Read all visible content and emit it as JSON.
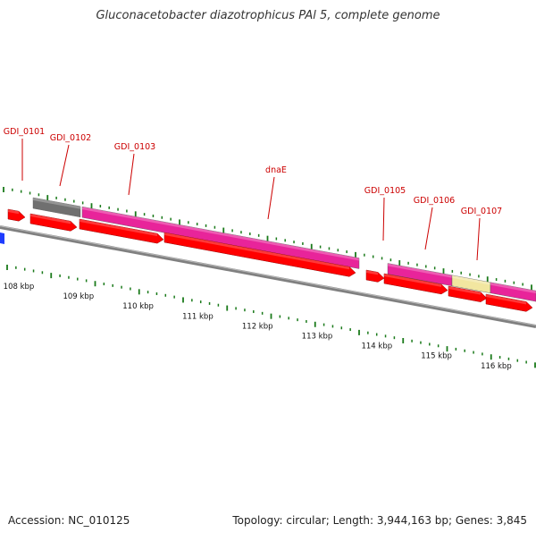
{
  "title": "Gluconacetobacter diazotrophicus PAl 5, complete genome",
  "footer": {
    "accession": "Accession: NC_010125",
    "summary": "Topology: circular; Length: 3,944,163 bp; Genes: 3,845"
  },
  "colors": {
    "backbone": "#808080",
    "cds": "#ff0000",
    "gene_magenta": "#e8249a",
    "gene_gray": "#707070",
    "gene_yellow": "#f2e6a0",
    "blue_feature": "#1e3cff",
    "label": "#cc0000",
    "tick": "#1a7a1a"
  },
  "scale": {
    "unit": "kbp",
    "labels": [
      {
        "kbp": 108,
        "text": "108 kbp"
      },
      {
        "kbp": 109,
        "text": "109 kbp"
      },
      {
        "kbp": 110,
        "text": "110 kbp"
      },
      {
        "kbp": 111,
        "text": "111 kbp"
      },
      {
        "kbp": 112,
        "text": "112 kbp"
      },
      {
        "kbp": 113,
        "text": "113 kbp"
      },
      {
        "kbp": 114,
        "text": "114 kbp"
      },
      {
        "kbp": 115,
        "text": "115 kbp"
      },
      {
        "kbp": 116,
        "text": "116 kbp"
      }
    ]
  },
  "gene_labels": [
    {
      "id": "GDI_0101",
      "text": "GDI_0101"
    },
    {
      "id": "GDI_0102",
      "text": "GDI_0102"
    },
    {
      "id": "GDI_0103",
      "text": "GDI_0103"
    },
    {
      "id": "dnaE",
      "text": "dnaE"
    },
    {
      "id": "GDI_0105",
      "text": "GDI_0105"
    },
    {
      "id": "GDI_0106",
      "text": "GDI_0106"
    },
    {
      "id": "GDI_0107",
      "text": "GDI_0107"
    }
  ],
  "gene_track": [
    {
      "id": "GDI_0102",
      "color": "gene_gray"
    },
    {
      "id": "GDI_0103",
      "color": "gene_magenta"
    },
    {
      "id": "GDI_0105",
      "color": "gene_magenta"
    },
    {
      "id": "GDI_0106",
      "color": "gene_yellow"
    },
    {
      "id": "GDI_0107",
      "color": "gene_magenta"
    }
  ],
  "cds_track": [
    {
      "id": "GDI_0101"
    },
    {
      "id": "GDI_0102"
    },
    {
      "id": "GDI_0103"
    },
    {
      "id": "dnaE"
    },
    {
      "id": "GDI_0105"
    },
    {
      "id": "GDI_0106"
    },
    {
      "id": "GDI_0107"
    }
  ]
}
